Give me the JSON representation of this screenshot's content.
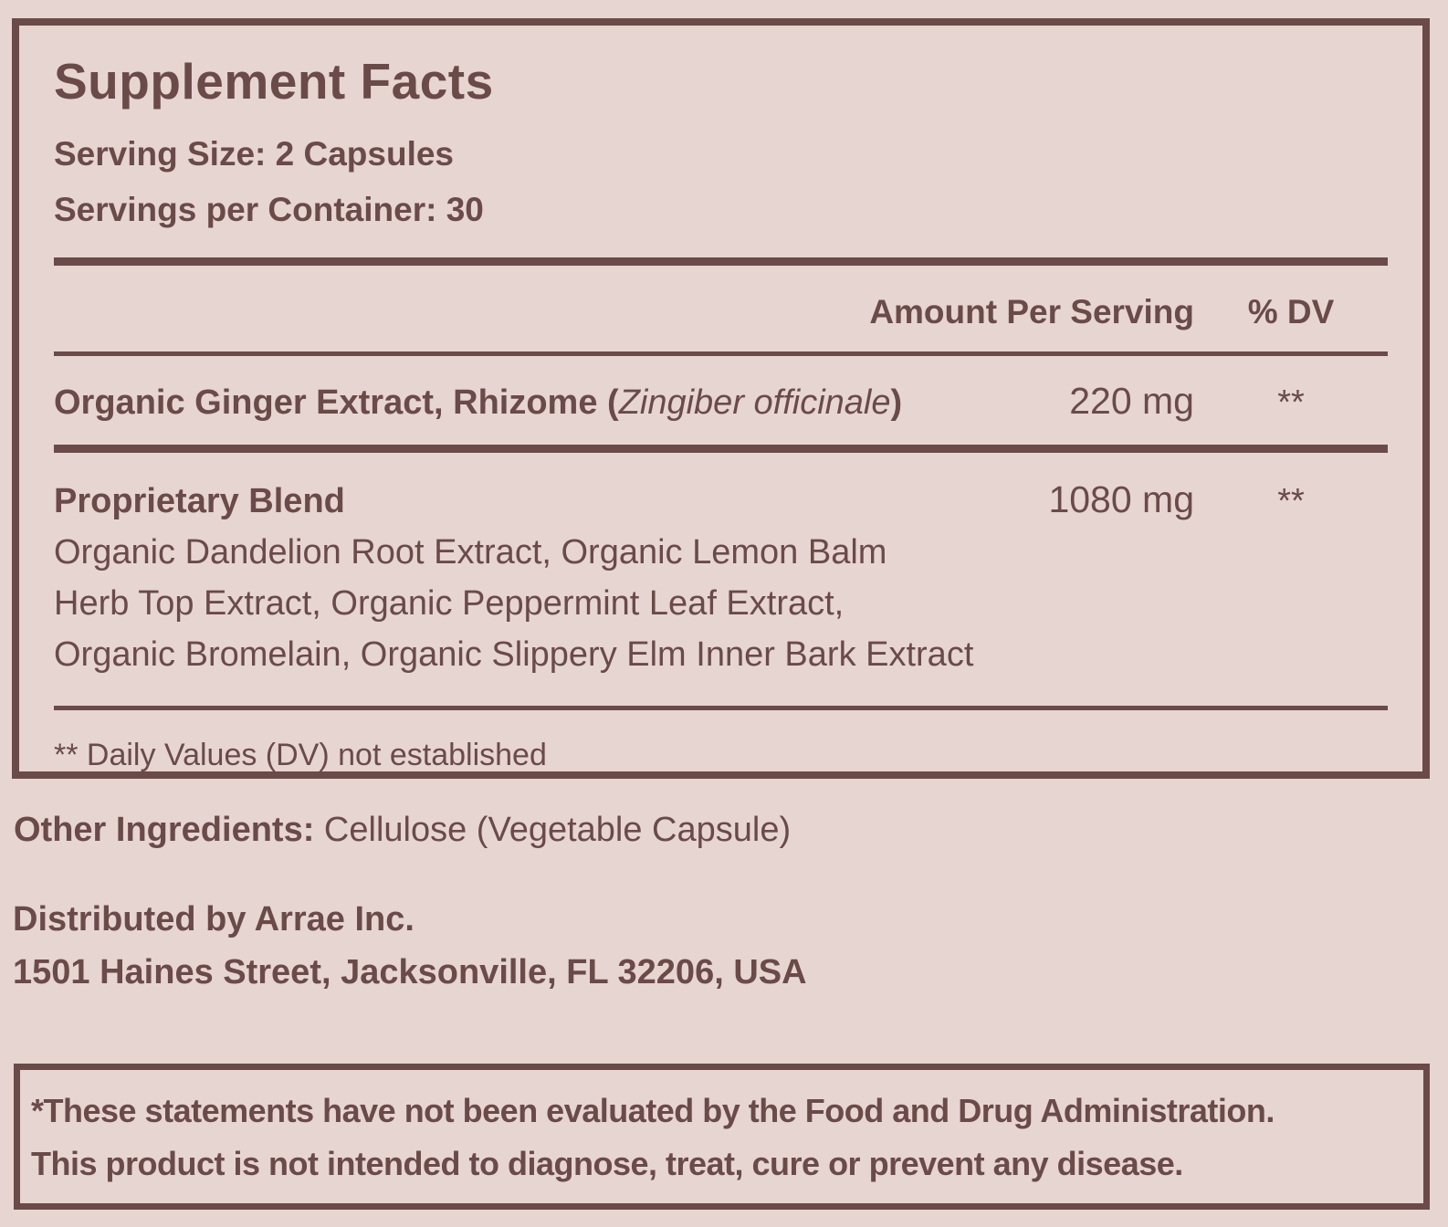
{
  "colors": {
    "background": "#e7d5d2",
    "ink": "#6a4b4a"
  },
  "supplement_panel": {
    "title": "Supplement Facts",
    "serving_size": "Serving Size: 2 Capsules",
    "servings_per_container": "Servings per Container: 30",
    "columns": {
      "amount_header": "Amount Per Serving",
      "dv_header": "% DV"
    },
    "ginger_row": {
      "name_prefix": "Organic Ginger Extract, Rhizome (",
      "name_species": "Zingiber officinale",
      "name_suffix": ")",
      "amount": "220 mg",
      "dv": "**"
    },
    "blend_row": {
      "name": "Proprietary Blend",
      "amount": "1080 mg",
      "dv": "**",
      "description_lines": [
        "Organic Dandelion Root Extract, Organic Lemon Balm",
        "Herb Top Extract, Organic Peppermint Leaf Extract,",
        "Organic Bromelain, Organic Slippery Elm Inner Bark Extract"
      ]
    },
    "footnote": "** Daily Values (DV) not established"
  },
  "other_ingredients": {
    "label": "Other Ingredients:",
    "value": " Cellulose (Vegetable Capsule)"
  },
  "distributor": {
    "line1": "Distributed by Arrae Inc.",
    "line2": "1501 Haines Street, Jacksonville, FL 32206, USA"
  },
  "disclaimer": {
    "line1": "*These statements have not been evaluated by the Food and Drug Administration.",
    "line2": "This product is not intended to diagnose, treat, cure or prevent any disease."
  }
}
